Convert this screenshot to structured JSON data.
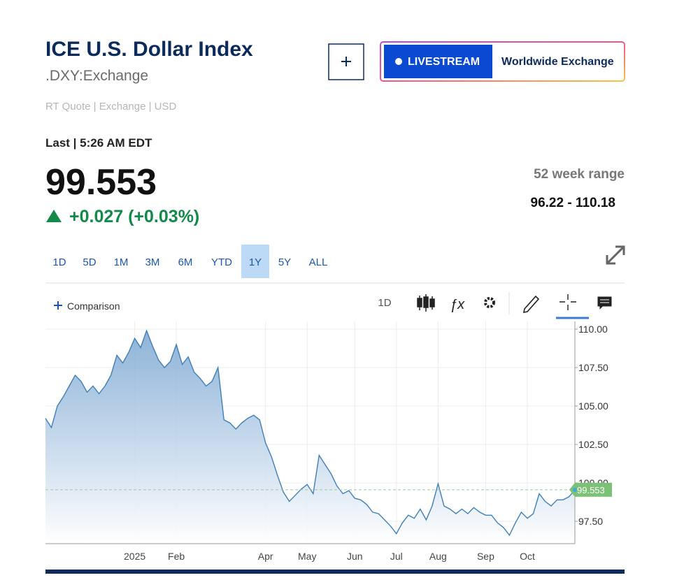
{
  "header": {
    "title": "ICE U.S. Dollar Index",
    "symbol": ".DXY:Exchange",
    "quote_info": "RT Quote | Exchange | USD",
    "last_time": "Last | 5:26 AM EDT",
    "livestream": "LIVESTREAM",
    "channel": "Worldwide Exchange"
  },
  "quote": {
    "last": 99.553,
    "change": "+0.027 (+0.03%)",
    "range_label": "52 week range",
    "range_value": "96.22 - 110.18"
  },
  "tabs": {
    "items": [
      "1D",
      "5D",
      "1M",
      "3M",
      "6M",
      "YTD",
      "1Y",
      "5Y",
      "ALL"
    ],
    "active": "1Y"
  },
  "toolbar": {
    "comparison": "Comparison",
    "interval": "1D"
  },
  "chart_data": {
    "type": "area",
    "categories": [
      null,
      null,
      null,
      null,
      null,
      null,
      null,
      null,
      null,
      null,
      null,
      null,
      null,
      null,
      null,
      "2025",
      null,
      null,
      null,
      null,
      null,
      null,
      "Feb",
      null,
      null,
      null,
      null,
      null,
      null,
      null,
      null,
      null,
      null,
      null,
      null,
      null,
      null,
      "Apr",
      null,
      null,
      null,
      null,
      null,
      null,
      "May",
      null,
      null,
      null,
      null,
      null,
      null,
      null,
      "Jun",
      null,
      null,
      null,
      null,
      null,
      null,
      "Jul",
      null,
      null,
      null,
      null,
      null,
      null,
      "Aug",
      null,
      null,
      null,
      null,
      null,
      null,
      null,
      "Sep",
      null,
      null,
      null,
      null,
      null,
      null,
      "Oct",
      null,
      null,
      null,
      null,
      null,
      null,
      null,
      null
    ],
    "series": [
      {
        "name": ".DXY",
        "color": "#3f7fb5",
        "values": [
          104.2,
          103.6,
          105.0,
          105.6,
          106.3,
          107.0,
          106.6,
          105.9,
          106.3,
          105.8,
          106.3,
          107.0,
          108.3,
          107.8,
          108.5,
          109.4,
          108.8,
          109.9,
          108.9,
          108.0,
          107.5,
          107.9,
          109.0,
          107.7,
          108.2,
          107.2,
          106.8,
          106.3,
          106.6,
          107.5,
          104.1,
          103.9,
          103.5,
          103.9,
          104.2,
          104.4,
          104.1,
          102.6,
          101.7,
          100.5,
          99.4,
          98.8,
          99.2,
          99.6,
          99.9,
          99.3,
          101.8,
          101.2,
          100.6,
          99.8,
          99.3,
          99.5,
          99.0,
          98.9,
          98.6,
          98.1,
          98.0,
          97.6,
          97.2,
          96.7,
          97.4,
          97.9,
          97.7,
          98.3,
          97.6,
          98.5,
          99.95,
          98.5,
          98.3,
          98.0,
          98.3,
          98.0,
          98.4,
          98.1,
          97.9,
          97.9,
          97.4,
          97.1,
          96.6,
          97.4,
          98.1,
          97.7,
          98.0,
          99.3,
          98.8,
          98.5,
          98.9,
          98.9,
          99.1,
          99.553
        ]
      }
    ],
    "ylim": [
      96.05,
      110.5
    ],
    "yticks": [
      {
        "value": 110,
        "label": "110.00"
      },
      {
        "value": 107.5,
        "label": "107.50"
      },
      {
        "value": 105,
        "label": "105.00"
      },
      {
        "value": 102.5,
        "label": "102.50"
      },
      {
        "value": 100,
        "label": "100.00"
      },
      {
        "value": 97.5,
        "label": "97.50"
      }
    ],
    "grid": true
  }
}
